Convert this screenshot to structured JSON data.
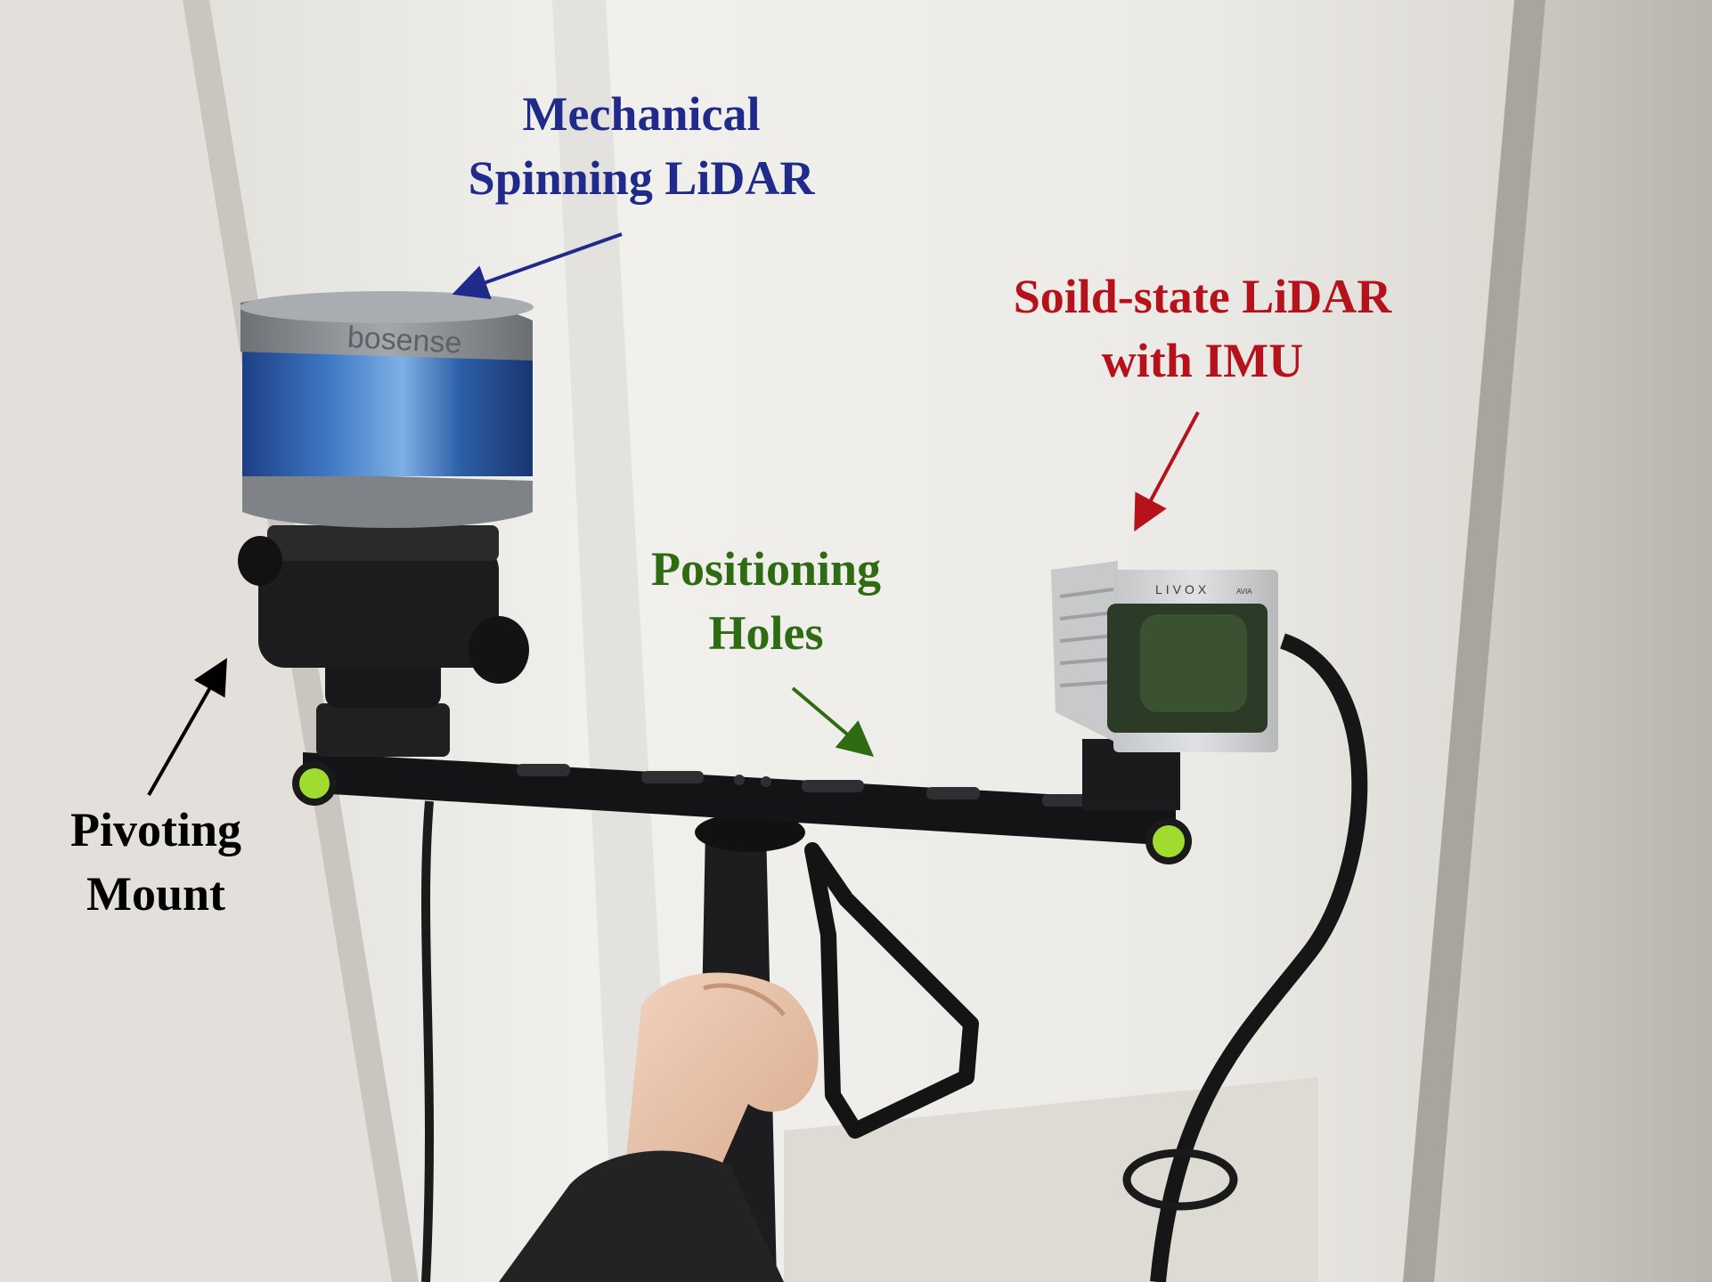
{
  "annotations": {
    "mechanical_lidar": {
      "lines": [
        "Mechanical",
        "Spinning LiDAR"
      ],
      "color": "#1f2a8a"
    },
    "solid_state_lidar": {
      "lines": [
        "Soild-state LiDAR",
        "with IMU"
      ],
      "color": "#b5121b"
    },
    "positioning_holes": {
      "lines": [
        "Positioning",
        "Holes"
      ],
      "color": "#2e6b12"
    },
    "pivoting_mount": {
      "lines": [
        "Pivoting",
        "Mount"
      ],
      "color": "#000000"
    }
  },
  "device_text": {
    "spinning_lidar_brand": "bosense",
    "solid_state_brand": "LIVOX",
    "solid_state_model": "AVIA"
  }
}
